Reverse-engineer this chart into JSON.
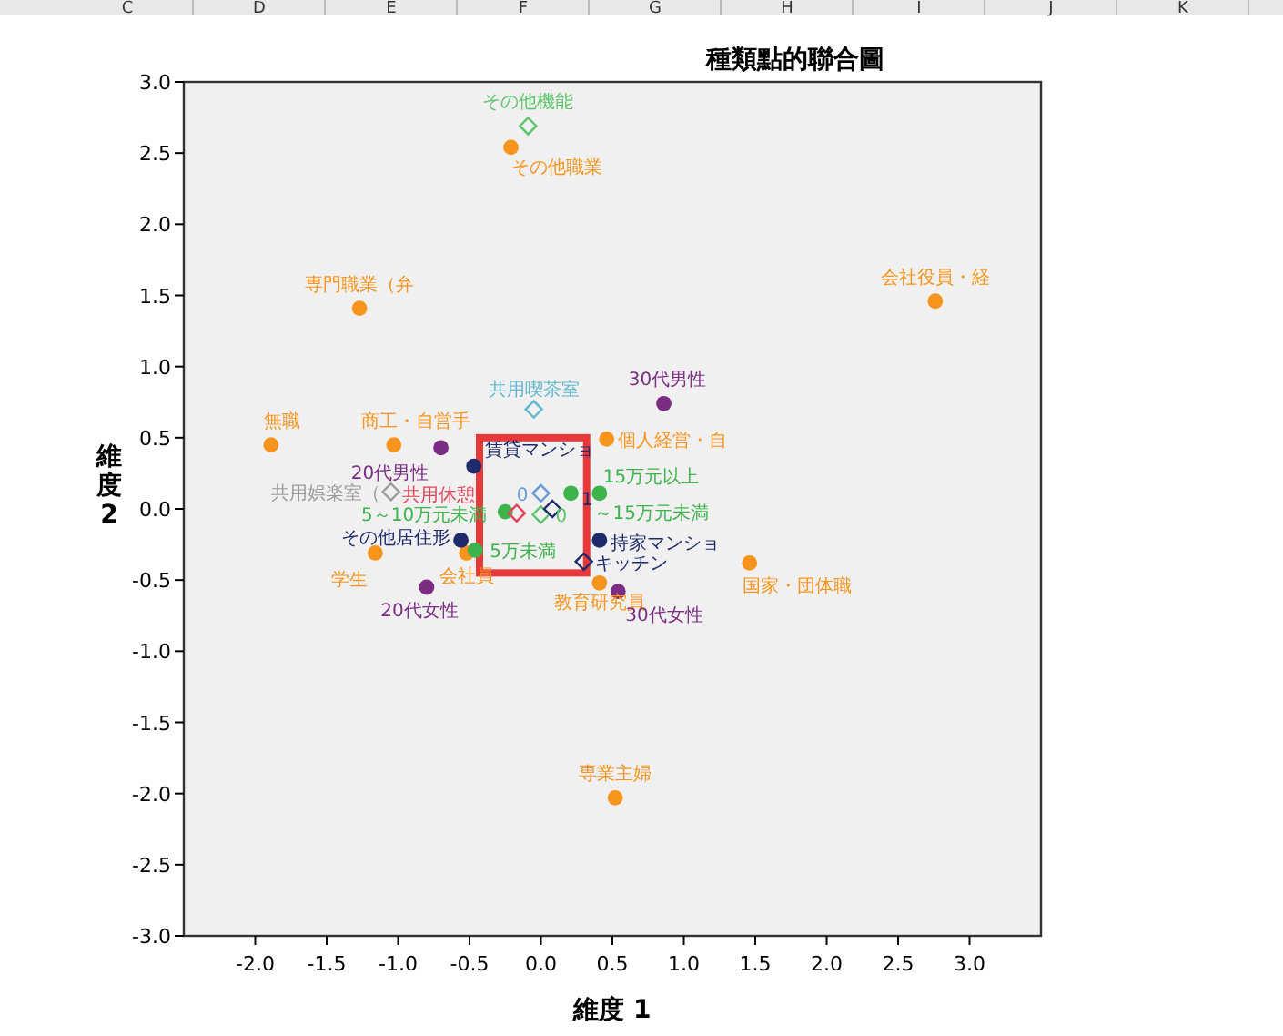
{
  "chart_data": {
    "type": "scatter",
    "title": "種類點的聯合圖",
    "xlabel": "維度 1",
    "ylabel": "維度 2",
    "xlim": [
      -2.5,
      3.5
    ],
    "ylim": [
      -3,
      3
    ],
    "xticks": [
      {
        "value": -2,
        "label": "-2.0"
      },
      {
        "value": -1.5,
        "label": "-1.5"
      },
      {
        "value": -1,
        "label": "-1.0"
      },
      {
        "value": -0.5,
        "label": "-0.5"
      },
      {
        "value": 0,
        "label": "0.0"
      },
      {
        "value": 0.5,
        "label": "0.5"
      },
      {
        "value": 1,
        "label": "1.0"
      },
      {
        "value": 1.5,
        "label": "1.5"
      },
      {
        "value": 2,
        "label": "2.0"
      },
      {
        "value": 2.5,
        "label": "2.5"
      },
      {
        "value": 3,
        "label": "3.0"
      }
    ],
    "yticks": [
      {
        "value": 3,
        "label": "3.0"
      },
      {
        "value": 2.5,
        "label": "2.5"
      },
      {
        "value": 2,
        "label": "2.0"
      },
      {
        "value": 1.5,
        "label": "1.5"
      },
      {
        "value": 1,
        "label": "1.0"
      },
      {
        "value": 0.5,
        "label": "0.5"
      },
      {
        "value": 0,
        "label": "0.0"
      },
      {
        "value": -0.5,
        "label": "-0.5"
      },
      {
        "value": -1,
        "label": "-1.0"
      },
      {
        "value": -1.5,
        "label": "-1.5"
      },
      {
        "value": -2,
        "label": "-2.0"
      },
      {
        "value": -2.5,
        "label": "-2.5"
      },
      {
        "value": -3,
        "label": "-3.0"
      }
    ],
    "series": [
      {
        "color": "#f7941d",
        "marker": "circle",
        "x": [
          -0.21,
          -1.27,
          2.76,
          -1.89,
          -1.03,
          0.46,
          -1.16,
          1.46,
          0.41,
          -0.52,
          0.52
        ],
        "values": [
          2.54,
          1.41,
          1.46,
          0.45,
          0.45,
          0.49,
          -0.31,
          -0.38,
          -0.52,
          -0.31,
          -2.03
        ]
      },
      {
        "color": "#7b2c83",
        "marker": "circle",
        "x": [
          0.86,
          -0.7,
          -0.8,
          0.54
        ],
        "values": [
          0.74,
          0.43,
          -0.55,
          -0.58
        ]
      },
      {
        "color": "#1f2a6b",
        "marker": "circle",
        "x": [
          -0.47,
          -0.56,
          0.41
        ],
        "values": [
          0.3,
          -0.22,
          -0.22
        ]
      },
      {
        "color": "#3cb44b",
        "marker": "circle",
        "x": [
          0.41,
          0.21,
          -0.25,
          -0.46
        ],
        "values": [
          0.11,
          0.11,
          -0.02,
          -0.29
        ]
      },
      {
        "colors": [
          "#5cc46a",
          "#5fb8cc",
          "#6b9bd6",
          "#e0445a",
          "#5cc46a",
          "#1f2a6b",
          "#9a9a9a",
          "#1f2a6b"
        ],
        "marker": "diamond",
        "x": [
          -0.09,
          -0.05,
          0.0,
          -0.17,
          0.0,
          0.08,
          -1.05,
          0.3
        ],
        "values": [
          2.69,
          0.7,
          0.11,
          -0.03,
          -0.04,
          0.0,
          0.12,
          -0.37
        ]
      }
    ],
    "annotations": [
      "C",
      "D",
      "E",
      "F",
      "G",
      "H",
      "I",
      "J",
      "K",
      {
        "text": "その他職業",
        "x": -0.21,
        "y": 2.54
      },
      {
        "text": "専門職業（弁",
        "x": -1.27,
        "y": 1.41
      },
      {
        "text": "会社役員・経",
        "x": 2.76,
        "y": 1.46
      },
      {
        "text": "無職",
        "x": -1.89,
        "y": 0.45
      },
      {
        "text": "商工・自営手",
        "x": -1.03,
        "y": 0.45
      },
      {
        "text": "個人経営・自",
        "x": 0.46,
        "y": 0.49
      },
      {
        "text": "学生",
        "x": -1.16,
        "y": -0.31
      },
      {
        "text": "国家・団体職",
        "x": 1.46,
        "y": -0.38
      },
      {
        "text": "教育研究員",
        "x": 0.41,
        "y": -0.52
      },
      {
        "text": "会社員",
        "x": -0.52,
        "y": -0.31
      },
      {
        "text": "専業主婦",
        "x": 0.52,
        "y": -2.03
      },
      {
        "text": "30代男性",
        "x": 0.86,
        "y": 0.74
      },
      {
        "text": "20代男性",
        "x": -0.7,
        "y": 0.43
      },
      {
        "text": "20代女性",
        "x": -0.8,
        "y": -0.55
      },
      {
        "text": "30代女性",
        "x": 0.54,
        "y": -0.58
      },
      {
        "text": "賃貸マンショ",
        "x": -0.47,
        "y": 0.3
      },
      {
        "text": "その他居住形",
        "x": -0.56,
        "y": -0.22
      },
      {
        "text": "持家マンショ",
        "x": 0.41,
        "y": -0.22
      },
      {
        "text": "15万元以上",
        "x": 0.41,
        "y": 0.11
      },
      {
        "text": "～15万元未満",
        "x": 0.21,
        "y": 0.11
      },
      {
        "text": "5～10万元未満",
        "x": -0.25,
        "y": -0.02
      },
      {
        "text": "5万未満",
        "x": -0.46,
        "y": -0.29
      },
      {
        "text": "その他機能",
        "x": -0.09,
        "y": 2.69
      },
      {
        "text": "共用喫茶室",
        "x": -0.05,
        "y": 0.7
      },
      {
        "text": "0",
        "x": 0.0,
        "y": 0.11
      },
      {
        "text": "共用休憩",
        "x": -0.17,
        "y": -0.03
      },
      {
        "text": "0",
        "x": 0.0,
        "y": -0.04
      },
      {
        "text": "1",
        "x": 0.08,
        "y": 0.0
      },
      {
        "text": "共用娯楽室（",
        "x": -1.05,
        "y": 0.12
      },
      {
        "text": "キッチン",
        "x": 0.3,
        "y": -0.37
      }
    ]
  }
}
